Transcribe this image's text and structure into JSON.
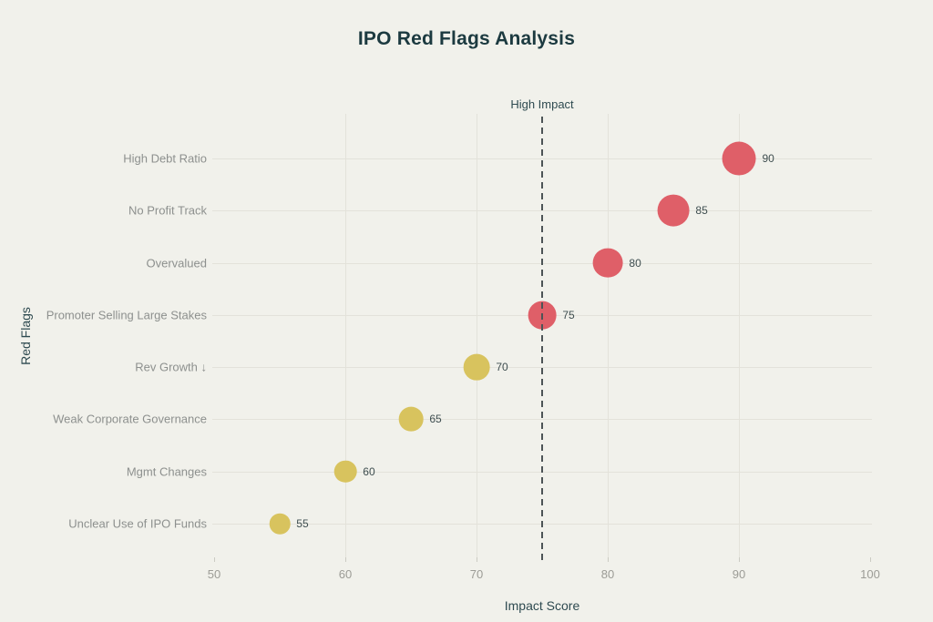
{
  "chart_data": {
    "type": "scatter",
    "title": "IPO Red Flags Analysis",
    "xlabel": "Impact Score",
    "ylabel": "Red Flags",
    "xlim": [
      50,
      100
    ],
    "x_ticks": [
      50,
      60,
      70,
      80,
      90,
      100
    ],
    "grid": true,
    "legend": null,
    "points": [
      {
        "category": "High Debt Ratio",
        "value": 90,
        "severity": "high"
      },
      {
        "category": "No Profit Track",
        "value": 85,
        "severity": "high"
      },
      {
        "category": "Overvalued",
        "value": 80,
        "severity": "high"
      },
      {
        "category": "Promoter Selling Large Stakes",
        "value": 75,
        "severity": "high"
      },
      {
        "category": "Rev Growth ↓",
        "value": 70,
        "severity": "moderate"
      },
      {
        "category": "Weak Corporate Governance",
        "value": 65,
        "severity": "moderate"
      },
      {
        "category": "Mgmt Changes",
        "value": 60,
        "severity": "moderate"
      },
      {
        "category": "Unclear Use of IPO Funds",
        "value": 55,
        "severity": "moderate"
      }
    ],
    "threshold": {
      "value": 75,
      "label": "High Impact"
    },
    "color_rule": "value >= 75 is high (red), below 75 is moderate (yellow)",
    "colors": {
      "high_impact": "#DF5F68",
      "moderate_impact": "#D8C35E",
      "background": "#F1F1EB",
      "gridline": "#E3E2DA",
      "threshold_line": "#4D5456",
      "title_text": "#1C3A40",
      "axis_title_text": "#2E4A50",
      "category_label_text": "#8D908E",
      "tick_label_text": "#9C9C96",
      "value_label_text": "#3F4E50"
    }
  }
}
